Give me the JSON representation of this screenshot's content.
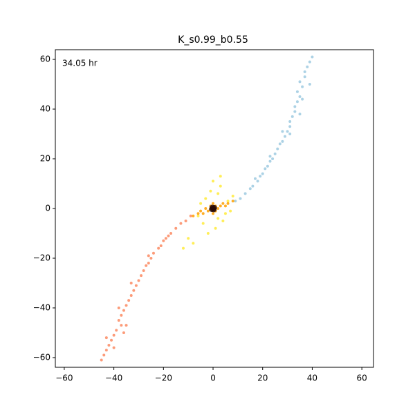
{
  "chart_data": {
    "type": "scatter",
    "title": "K_s0.99_b0.55",
    "annotation": "34.05 hr",
    "xlim": [
      -63.6,
      64.7
    ],
    "ylim": [
      -63.9,
      63.9
    ],
    "xticks": [
      {
        "value": -60,
        "label": "−60"
      },
      {
        "value": -40,
        "label": "−40"
      },
      {
        "value": -20,
        "label": "−20"
      },
      0,
      20,
      40,
      60
    ],
    "yticks": [
      {
        "value": -60,
        "label": "−60"
      },
      {
        "value": -40,
        "label": "−40"
      },
      {
        "value": -20,
        "label": "−20"
      },
      0,
      20,
      40,
      60
    ],
    "series": [
      {
        "color": "#9ecae1",
        "x": [
          9,
          11,
          13,
          15,
          16,
          18,
          19,
          20,
          21,
          22,
          23,
          24,
          25,
          26,
          27,
          28,
          29,
          30,
          31,
          31,
          32,
          33,
          33,
          34,
          35,
          34,
          36,
          35,
          37,
          37,
          38,
          39,
          40,
          36,
          31,
          23,
          17,
          28,
          35,
          39
        ],
        "values": [
          3,
          4,
          6,
          8,
          9,
          11,
          13,
          14,
          16,
          17,
          19,
          20,
          22,
          24,
          26,
          27,
          29,
          31,
          33,
          35,
          37,
          39,
          41,
          43,
          45,
          47,
          49,
          51,
          53,
          55,
          57,
          59,
          61,
          44,
          30,
          21,
          12,
          31,
          38,
          50
        ]
      },
      {
        "color": "#fc8a62",
        "x": [
          -9,
          -11,
          -13,
          -15,
          -17,
          -18,
          -20,
          -21,
          -22,
          -24,
          -25,
          -26,
          -27,
          -28,
          -29,
          -30,
          -31,
          -32,
          -33,
          -34,
          -35,
          -36,
          -37,
          -38,
          -37,
          -39,
          -40,
          -41,
          -42,
          -43,
          -44,
          -45,
          -38,
          -33,
          -26,
          -19,
          -40,
          -35,
          -43,
          -36
        ],
        "values": [
          -3,
          -5,
          -6,
          -8,
          -10,
          -11,
          -13,
          -15,
          -16,
          -18,
          -20,
          -22,
          -23,
          -25,
          -27,
          -29,
          -31,
          -33,
          -35,
          -37,
          -39,
          -41,
          -43,
          -45,
          -47,
          -49,
          -51,
          -53,
          -55,
          -57,
          -59,
          -61,
          -40,
          -30,
          -19,
          -12,
          -56,
          -47,
          -52,
          -50
        ]
      },
      {
        "color": "#ffeb3b",
        "x": [
          2,
          -3,
          5,
          -4,
          1,
          3,
          -2,
          6,
          -6,
          0,
          4,
          -5,
          -10,
          -12,
          8,
          2,
          -1,
          7,
          -8,
          3
        ],
        "values": [
          6,
          4,
          -2,
          -6,
          -8,
          9,
          -10,
          3,
          -3,
          11,
          -5,
          2,
          -12,
          -16,
          5,
          -4,
          7,
          -1,
          -14,
          13
        ]
      },
      {
        "color": "#ffa000",
        "x": [
          -1,
          1,
          2,
          -2,
          3,
          -3,
          0,
          0,
          4,
          -4,
          5,
          -5,
          6,
          -6,
          8,
          -8,
          1,
          -1
        ],
        "values": [
          0,
          1,
          0,
          -1,
          1,
          0,
          2,
          -2,
          2,
          -2,
          1,
          -1,
          2,
          -2,
          3,
          -3,
          -1,
          1
        ]
      },
      {
        "color": "#2a0a05",
        "x": [
          0,
          0.5,
          -0.5,
          0.3,
          -0.3
        ],
        "values": [
          0,
          0.3,
          -0.3,
          -0.4,
          0.4
        ]
      }
    ]
  }
}
